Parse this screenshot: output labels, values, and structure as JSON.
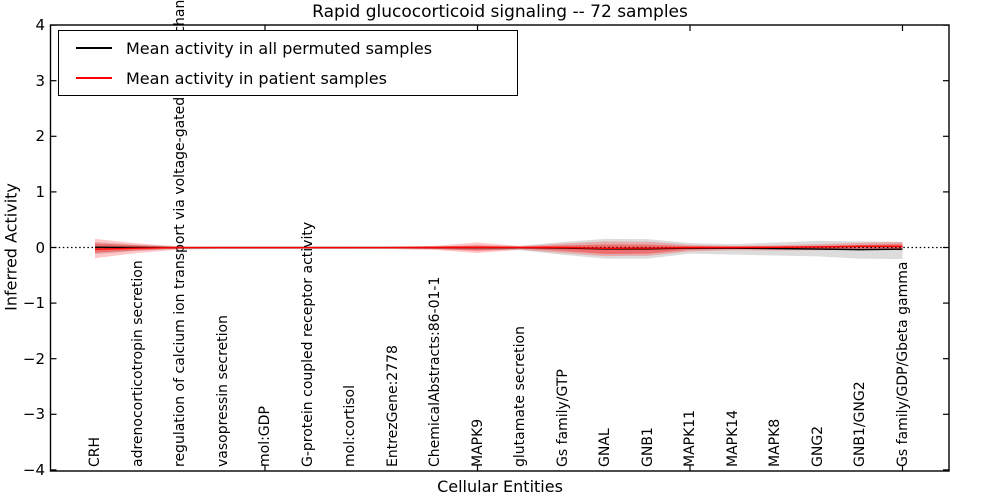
{
  "title": "Rapid glucocorticoid signaling -- 72 samples",
  "axes": {
    "xlabel": "Cellular Entities",
    "ylabel": "Inferred Activity",
    "ytick_labels": [
      "4",
      "3",
      "2",
      "1",
      "0",
      "−1",
      "−2",
      "−3",
      "−4"
    ],
    "ytick_values": [
      4,
      3,
      2,
      1,
      0,
      -1,
      -2,
      -3,
      -4
    ],
    "ylim": [
      -4,
      4
    ],
    "xtick_entity_indices": [
      4,
      9,
      14,
      19
    ]
  },
  "legend": {
    "items": [
      {
        "label": "Mean activity in all permuted samples",
        "color": "#000000"
      },
      {
        "label": "Mean activity in patient samples",
        "color": "#ff0000"
      }
    ]
  },
  "colors": {
    "permuted_line": "#000000",
    "patient_line": "#ff0000",
    "permuted_band": "#808080",
    "patient_band": "#ff0000",
    "zero_line": "#000000",
    "spine": "#000000"
  },
  "chart_data": {
    "type": "line",
    "title": "Rapid glucocorticoid signaling -- 72 samples",
    "xlabel": "Cellular Entities",
    "ylabel": "Inferred Activity",
    "ylim": [
      -4,
      4
    ],
    "zero_reference_line": 0,
    "x_categories": [
      "CRH",
      "adrenocorticotropin secretion",
      "regulation of calcium ion transport via voltage-gated calcium channels",
      "vasopressin secretion",
      "mol:GDP",
      "G-protein coupled receptor activity",
      "mol:cortisol",
      "EntrezGene:2778",
      "ChemicalAbstracts:86-01-1",
      "MAPK9",
      "glutamate secretion",
      "Gs family/GTP",
      "GNAL",
      "GNB1",
      "MAPK11",
      "MAPK14",
      "MAPK8",
      "GNG2",
      "GNB1/GNG2",
      "Gs family/GDP/Gbeta gamma"
    ],
    "series": [
      {
        "name": "Mean activity in all permuted samples",
        "values": [
          0.005,
          0.0,
          -0.003,
          -0.002,
          -0.002,
          -0.002,
          -0.002,
          -0.002,
          -0.002,
          -0.003,
          -0.003,
          -0.01,
          -0.025,
          -0.025,
          -0.01,
          -0.012,
          -0.018,
          -0.028,
          -0.038,
          -0.03
        ]
      },
      {
        "name": "Mean activity in patient samples",
        "values": [
          -0.03,
          -0.012,
          -0.002,
          -0.002,
          -0.002,
          -0.002,
          -0.002,
          -0.002,
          0.0,
          0.002,
          0.0,
          0.0,
          -0.015,
          -0.012,
          -0.002,
          0.0,
          0.003,
          0.01,
          0.022,
          0.02
        ]
      }
    ],
    "bands": [
      {
        "name": "permuted-confidence-band",
        "color": "#808080",
        "opacity": 0.28,
        "top": [
          0.1,
          0.05,
          0.015,
          0.01,
          0.01,
          0.01,
          0.01,
          0.012,
          0.02,
          0.04,
          0.03,
          0.1,
          0.155,
          0.15,
          0.08,
          0.06,
          0.09,
          0.12,
          0.11,
          0.1
        ],
        "bottom": [
          -0.12,
          -0.06,
          -0.025,
          -0.02,
          -0.02,
          -0.02,
          -0.02,
          -0.02,
          -0.03,
          -0.05,
          -0.05,
          -0.13,
          -0.2,
          -0.2,
          -0.11,
          -0.125,
          -0.145,
          -0.16,
          -0.2,
          -0.21
        ]
      },
      {
        "name": "patient-confidence-band-outer",
        "color": "#ff0000",
        "opacity": 0.22,
        "top": [
          0.155,
          0.075,
          0.02,
          0.013,
          0.013,
          0.013,
          0.013,
          0.015,
          0.03,
          0.09,
          0.025,
          0.07,
          0.11,
          0.105,
          0.05,
          0.03,
          0.04,
          0.06,
          0.085,
          0.1
        ],
        "bottom": [
          -0.19,
          -0.1,
          -0.035,
          -0.028,
          -0.028,
          -0.028,
          -0.028,
          -0.03,
          -0.045,
          -0.1,
          -0.04,
          -0.1,
          -0.155,
          -0.15,
          -0.07,
          -0.05,
          -0.055,
          -0.05,
          -0.04,
          -0.05
        ]
      },
      {
        "name": "patient-confidence-band-inner",
        "color": "#ff0000",
        "opacity": 0.35,
        "top": [
          0.075,
          0.038,
          0.01,
          0.007,
          0.007,
          0.007,
          0.007,
          0.008,
          0.015,
          0.035,
          0.013,
          0.035,
          0.054,
          0.052,
          0.025,
          0.015,
          0.02,
          0.03,
          0.045,
          0.06
        ],
        "bottom": [
          -0.095,
          -0.05,
          -0.018,
          -0.014,
          -0.014,
          -0.014,
          -0.014,
          -0.015,
          -0.025,
          -0.06,
          -0.02,
          -0.06,
          -0.117,
          -0.11,
          -0.04,
          -0.025,
          -0.03,
          -0.025,
          -0.018,
          -0.02
        ]
      }
    ],
    "legend_position": "upper left",
    "grid": false
  }
}
